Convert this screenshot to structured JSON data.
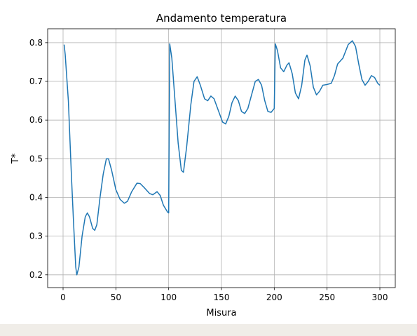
{
  "chart_data": {
    "type": "line",
    "title": "Andamento temperatura",
    "xlabel": "Misura",
    "ylabel": "T*",
    "x": [
      1,
      2,
      5,
      8,
      10,
      12,
      13,
      15,
      18,
      21,
      23,
      25,
      28,
      30,
      32,
      35,
      38,
      41,
      43,
      46,
      50,
      54,
      58,
      61,
      65,
      70,
      73,
      77,
      82,
      85,
      89,
      92,
      95,
      99,
      100,
      101,
      103,
      106,
      109,
      112,
      114,
      117,
      121,
      124,
      127,
      130,
      134,
      137,
      140,
      143,
      147,
      151,
      154,
      157,
      160,
      163,
      166,
      169,
      172,
      175,
      178,
      182,
      185,
      188,
      191,
      194,
      197,
      200,
      201,
      203,
      206,
      209,
      212,
      214,
      217,
      220,
      223,
      226,
      229,
      231,
      234,
      237,
      240,
      243,
      246,
      250,
      254,
      257,
      260,
      265,
      270,
      274,
      277,
      280,
      283,
      286,
      289,
      292,
      295,
      298,
      300
    ],
    "series": [
      {
        "name": "T*",
        "color": "#1f77b4",
        "values": [
          0.795,
          0.77,
          0.65,
          0.45,
          0.33,
          0.22,
          0.2,
          0.22,
          0.3,
          0.35,
          0.36,
          0.35,
          0.32,
          0.315,
          0.33,
          0.4,
          0.46,
          0.5,
          0.5,
          0.47,
          0.42,
          0.395,
          0.385,
          0.39,
          0.415,
          0.437,
          0.436,
          0.425,
          0.41,
          0.407,
          0.415,
          0.405,
          0.38,
          0.362,
          0.36,
          0.797,
          0.76,
          0.65,
          0.54,
          0.47,
          0.465,
          0.53,
          0.64,
          0.7,
          0.712,
          0.69,
          0.655,
          0.65,
          0.662,
          0.655,
          0.625,
          0.595,
          0.59,
          0.61,
          0.645,
          0.662,
          0.65,
          0.622,
          0.617,
          0.63,
          0.66,
          0.7,
          0.705,
          0.69,
          0.65,
          0.622,
          0.62,
          0.63,
          0.797,
          0.78,
          0.735,
          0.725,
          0.742,
          0.748,
          0.72,
          0.67,
          0.655,
          0.69,
          0.755,
          0.768,
          0.74,
          0.685,
          0.665,
          0.675,
          0.69,
          0.692,
          0.695,
          0.715,
          0.745,
          0.76,
          0.795,
          0.805,
          0.79,
          0.745,
          0.705,
          0.69,
          0.7,
          0.715,
          0.71,
          0.695,
          0.69
        ]
      }
    ],
    "xlim": [
      -14.6,
      314.6
    ],
    "ylim": [
      0.167,
      0.836
    ],
    "xticks": [
      0,
      50,
      100,
      150,
      200,
      250,
      300
    ],
    "yticks": [
      0.2,
      0.3,
      0.4,
      0.5,
      0.6,
      0.7,
      0.8
    ],
    "grid": true
  }
}
